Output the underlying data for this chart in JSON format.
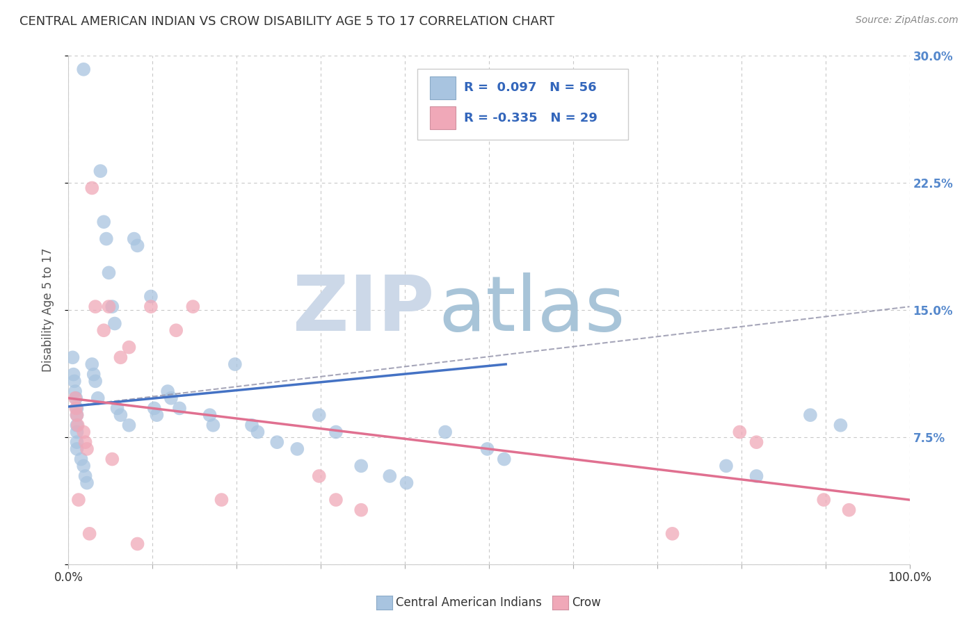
{
  "title": "CENTRAL AMERICAN INDIAN VS CROW DISABILITY AGE 5 TO 17 CORRELATION CHART",
  "source": "Source: ZipAtlas.com",
  "ylabel": "Disability Age 5 to 17",
  "xlim": [
    0,
    1.0
  ],
  "ylim": [
    0,
    0.3
  ],
  "yticks": [
    0.0,
    0.075,
    0.15,
    0.225,
    0.3
  ],
  "ytick_labels": [
    "",
    "7.5%",
    "15.0%",
    "22.5%",
    "30.0%"
  ],
  "background_color": "#ffffff",
  "grid_color": "#c8c8c8",
  "watermark_zip": "ZIP",
  "watermark_atlas": "atlas",
  "watermark_color_zip": "#ccd8e8",
  "watermark_color_atlas": "#a8c4d8",
  "blue_color": "#a8c4e0",
  "pink_color": "#f0a8b8",
  "blue_line_color": "#4472c4",
  "pink_line_color": "#e07090",
  "dashed_line_color": "#9090a8",
  "legend_blue_r": "0.097",
  "legend_blue_n": "56",
  "legend_pink_r": "-0.335",
  "legend_pink_n": "29",
  "blue_scatter_x": [
    0.018,
    0.038,
    0.042,
    0.045,
    0.048,
    0.052,
    0.055,
    0.005,
    0.006,
    0.007,
    0.008,
    0.009,
    0.01,
    0.01,
    0.01,
    0.01,
    0.01,
    0.01,
    0.015,
    0.018,
    0.02,
    0.022,
    0.028,
    0.03,
    0.032,
    0.035,
    0.058,
    0.062,
    0.072,
    0.078,
    0.082,
    0.098,
    0.102,
    0.105,
    0.118,
    0.122,
    0.132,
    0.168,
    0.172,
    0.198,
    0.218,
    0.225,
    0.248,
    0.272,
    0.298,
    0.318,
    0.348,
    0.382,
    0.402,
    0.448,
    0.498,
    0.518,
    0.782,
    0.818,
    0.882,
    0.918
  ],
  "blue_scatter_y": [
    0.292,
    0.232,
    0.202,
    0.192,
    0.172,
    0.152,
    0.142,
    0.122,
    0.112,
    0.108,
    0.102,
    0.098,
    0.092,
    0.088,
    0.082,
    0.078,
    0.072,
    0.068,
    0.062,
    0.058,
    0.052,
    0.048,
    0.118,
    0.112,
    0.108,
    0.098,
    0.092,
    0.088,
    0.082,
    0.192,
    0.188,
    0.158,
    0.092,
    0.088,
    0.102,
    0.098,
    0.092,
    0.088,
    0.082,
    0.118,
    0.082,
    0.078,
    0.072,
    0.068,
    0.088,
    0.078,
    0.058,
    0.052,
    0.048,
    0.078,
    0.068,
    0.062,
    0.058,
    0.052,
    0.088,
    0.082
  ],
  "pink_scatter_x": [
    0.008,
    0.009,
    0.01,
    0.011,
    0.012,
    0.018,
    0.02,
    0.022,
    0.025,
    0.028,
    0.032,
    0.042,
    0.048,
    0.052,
    0.062,
    0.072,
    0.082,
    0.098,
    0.128,
    0.148,
    0.182,
    0.298,
    0.318,
    0.348,
    0.718,
    0.798,
    0.818,
    0.898,
    0.928
  ],
  "pink_scatter_y": [
    0.098,
    0.092,
    0.088,
    0.082,
    0.038,
    0.078,
    0.072,
    0.068,
    0.018,
    0.222,
    0.152,
    0.138,
    0.152,
    0.062,
    0.122,
    0.128,
    0.012,
    0.152,
    0.138,
    0.152,
    0.038,
    0.052,
    0.038,
    0.032,
    0.018,
    0.078,
    0.072,
    0.038,
    0.032
  ],
  "blue_trend_x0": 0.0,
  "blue_trend_x1": 0.52,
  "blue_trend_y0": 0.093,
  "blue_trend_y1": 0.118,
  "pink_trend_x0": 0.0,
  "pink_trend_x1": 1.0,
  "pink_trend_y0": 0.098,
  "pink_trend_y1": 0.038,
  "dashed_trend_x0": 0.0,
  "dashed_trend_x1": 1.0,
  "dashed_trend_y0": 0.093,
  "dashed_trend_y1": 0.152
}
